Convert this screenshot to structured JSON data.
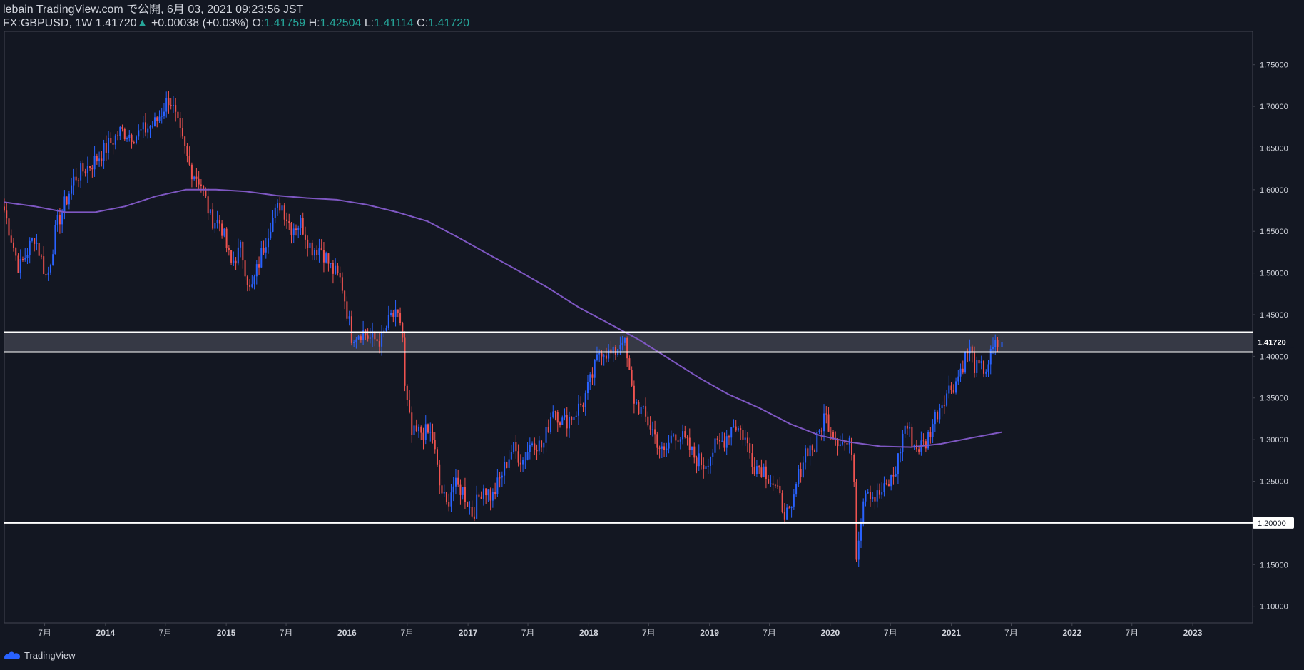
{
  "header": {
    "publisher": "lebain TradingView.com で公開, 6月 03, 2021 09:23:56 JST",
    "symbol": "FX:GBPUSD, 1W",
    "last": "1.41720",
    "change": "+0.00038 (+0.03%)",
    "o_label": "O:",
    "o_value": "1.41759",
    "h_label": "H:",
    "h_value": "1.42504",
    "l_label": "L:",
    "l_value": "1.41114",
    "c_label": "C:",
    "c_value": "1.41720"
  },
  "footer": {
    "brand": "TradingView"
  },
  "colors": {
    "background": "#131722",
    "up": "#2962ff",
    "down": "#ef5350",
    "ma": "#7e57c2",
    "grid_text": "#d1d4dc",
    "level_line": "#ffffff",
    "zone_fill": "#434651"
  },
  "chart_data": {
    "type": "candlestick",
    "symbol": "FX:GBPUSD",
    "interval": "1W",
    "ylim": [
      1.08,
      1.79
    ],
    "xlim": [
      "2013-03-01",
      "2023-07-01"
    ],
    "x_ticks": [
      {
        "date": "2013-07-01",
        "label": "7月"
      },
      {
        "date": "2014-01-01",
        "label": "2014"
      },
      {
        "date": "2014-07-01",
        "label": "7月"
      },
      {
        "date": "2015-01-01",
        "label": "2015"
      },
      {
        "date": "2015-07-01",
        "label": "7月"
      },
      {
        "date": "2016-01-01",
        "label": "2016"
      },
      {
        "date": "2016-07-01",
        "label": "7月"
      },
      {
        "date": "2017-01-01",
        "label": "2017"
      },
      {
        "date": "2017-07-01",
        "label": "7月"
      },
      {
        "date": "2018-01-01",
        "label": "2018"
      },
      {
        "date": "2018-07-01",
        "label": "7月"
      },
      {
        "date": "2019-01-01",
        "label": "2019"
      },
      {
        "date": "2019-07-01",
        "label": "7月"
      },
      {
        "date": "2020-01-01",
        "label": "2020"
      },
      {
        "date": "2020-07-01",
        "label": "7月"
      },
      {
        "date": "2021-01-01",
        "label": "2021"
      },
      {
        "date": "2021-07-01",
        "label": "7月"
      },
      {
        "date": "2022-01-01",
        "label": "2022"
      },
      {
        "date": "2022-07-01",
        "label": "7月"
      },
      {
        "date": "2023-01-01",
        "label": "2023"
      }
    ],
    "y_ticks": [
      "1.10000",
      "1.15000",
      "1.20000",
      "1.25000",
      "1.30000",
      "1.35000",
      "1.40000",
      "1.45000",
      "1.50000",
      "1.55000",
      "1.60000",
      "1.65000",
      "1.70000",
      "1.75000"
    ],
    "price_label": "1.41720",
    "price_label_value": 1.4172,
    "support_label": "1.20000",
    "support_value": 1.2,
    "zone": [
      1.405,
      1.429
    ],
    "close_anchors": [
      [
        "2013-03-01",
        1.575
      ],
      [
        "2013-04-15",
        1.505
      ],
      [
        "2013-06-01",
        1.545
      ],
      [
        "2013-07-08",
        1.492
      ],
      [
        "2013-08-05",
        1.555
      ],
      [
        "2013-09-30",
        1.615
      ],
      [
        "2013-12-01",
        1.635
      ],
      [
        "2014-02-15",
        1.67
      ],
      [
        "2014-04-01",
        1.665
      ],
      [
        "2014-06-01",
        1.68
      ],
      [
        "2014-07-14",
        1.712
      ],
      [
        "2014-08-15",
        1.665
      ],
      [
        "2014-09-15",
        1.625
      ],
      [
        "2014-10-15",
        1.61
      ],
      [
        "2014-11-15",
        1.565
      ],
      [
        "2014-12-15",
        1.56
      ],
      [
        "2015-01-15",
        1.51
      ],
      [
        "2015-02-15",
        1.53
      ],
      [
        "2015-03-15",
        1.475
      ],
      [
        "2015-04-15",
        1.52
      ],
      [
        "2015-05-15",
        1.56
      ],
      [
        "2015-06-15",
        1.585
      ],
      [
        "2015-07-15",
        1.555
      ],
      [
        "2015-08-15",
        1.56
      ],
      [
        "2015-09-15",
        1.53
      ],
      [
        "2015-10-15",
        1.53
      ],
      [
        "2015-11-15",
        1.505
      ],
      [
        "2015-12-15",
        1.49
      ],
      [
        "2016-01-15",
        1.425
      ],
      [
        "2016-02-15",
        1.43
      ],
      [
        "2016-03-15",
        1.42
      ],
      [
        "2016-04-15",
        1.42
      ],
      [
        "2016-05-15",
        1.45
      ],
      [
        "2016-06-15",
        1.44
      ],
      [
        "2016-06-24",
        1.36
      ],
      [
        "2016-07-15",
        1.305
      ],
      [
        "2016-08-15",
        1.31
      ],
      [
        "2016-09-15",
        1.305
      ],
      [
        "2016-10-07",
        1.245
      ],
      [
        "2016-10-28",
        1.22
      ],
      [
        "2016-11-15",
        1.245
      ],
      [
        "2016-12-15",
        1.24
      ],
      [
        "2017-01-15",
        1.21
      ],
      [
        "2017-02-15",
        1.245
      ],
      [
        "2017-03-15",
        1.23
      ],
      [
        "2017-04-15",
        1.26
      ],
      [
        "2017-05-15",
        1.29
      ],
      [
        "2017-06-15",
        1.275
      ],
      [
        "2017-07-15",
        1.3
      ],
      [
        "2017-08-15",
        1.29
      ],
      [
        "2017-09-15",
        1.34
      ],
      [
        "2017-10-15",
        1.32
      ],
      [
        "2017-11-15",
        1.33
      ],
      [
        "2017-12-15",
        1.345
      ],
      [
        "2018-01-15",
        1.38
      ],
      [
        "2018-02-05",
        1.41
      ],
      [
        "2018-03-15",
        1.4
      ],
      [
        "2018-04-15",
        1.425
      ],
      [
        "2018-05-15",
        1.35
      ],
      [
        "2018-06-15",
        1.33
      ],
      [
        "2018-07-15",
        1.31
      ],
      [
        "2018-08-15",
        1.28
      ],
      [
        "2018-09-15",
        1.31
      ],
      [
        "2018-10-15",
        1.3
      ],
      [
        "2018-11-15",
        1.28
      ],
      [
        "2018-12-15",
        1.27
      ],
      [
        "2019-01-15",
        1.29
      ],
      [
        "2019-02-15",
        1.3
      ],
      [
        "2019-03-15",
        1.32
      ],
      [
        "2019-04-15",
        1.305
      ],
      [
        "2019-05-15",
        1.27
      ],
      [
        "2019-06-15",
        1.265
      ],
      [
        "2019-07-15",
        1.245
      ],
      [
        "2019-08-15",
        1.215
      ],
      [
        "2019-09-03",
        1.205
      ],
      [
        "2019-09-20",
        1.245
      ],
      [
        "2019-10-20",
        1.29
      ],
      [
        "2019-11-15",
        1.29
      ],
      [
        "2019-12-15",
        1.33
      ],
      [
        "2020-01-15",
        1.305
      ],
      [
        "2020-02-15",
        1.295
      ],
      [
        "2020-03-10",
        1.29
      ],
      [
        "2020-03-20",
        1.165
      ],
      [
        "2020-04-15",
        1.245
      ],
      [
        "2020-05-15",
        1.23
      ],
      [
        "2020-06-15",
        1.24
      ],
      [
        "2020-07-15",
        1.26
      ],
      [
        "2020-08-15",
        1.32
      ],
      [
        "2020-09-15",
        1.29
      ],
      [
        "2020-10-15",
        1.295
      ],
      [
        "2020-11-15",
        1.33
      ],
      [
        "2020-12-15",
        1.355
      ],
      [
        "2021-01-15",
        1.37
      ],
      [
        "2021-02-24",
        1.41
      ],
      [
        "2021-03-15",
        1.385
      ],
      [
        "2021-04-15",
        1.385
      ],
      [
        "2021-05-10",
        1.41
      ],
      [
        "2021-06-03",
        1.4172
      ]
    ],
    "series": [
      {
        "name": "",
        "color": "#7e57c2",
        "points": [
          [
            "2013-03-01",
            1.585
          ],
          [
            "2013-06-01",
            1.58
          ],
          [
            "2013-09-01",
            1.573
          ],
          [
            "2013-12-01",
            1.573
          ],
          [
            "2014-03-01",
            1.58
          ],
          [
            "2014-06-01",
            1.592
          ],
          [
            "2014-09-01",
            1.6
          ],
          [
            "2014-12-01",
            1.6
          ],
          [
            "2015-03-01",
            1.598
          ],
          [
            "2015-06-01",
            1.593
          ],
          [
            "2015-09-01",
            1.59
          ],
          [
            "2015-12-01",
            1.588
          ],
          [
            "2016-03-01",
            1.582
          ],
          [
            "2016-06-01",
            1.573
          ],
          [
            "2016-09-01",
            1.562
          ],
          [
            "2016-12-01",
            1.543
          ],
          [
            "2017-03-01",
            1.523
          ],
          [
            "2017-06-01",
            1.503
          ],
          [
            "2017-09-01",
            1.482
          ],
          [
            "2017-12-01",
            1.459
          ],
          [
            "2018-03-01",
            1.44
          ],
          [
            "2018-06-01",
            1.42
          ],
          [
            "2018-09-01",
            1.397
          ],
          [
            "2018-12-01",
            1.374
          ],
          [
            "2019-03-01",
            1.354
          ],
          [
            "2019-06-01",
            1.338
          ],
          [
            "2019-09-01",
            1.319
          ],
          [
            "2019-12-01",
            1.305
          ],
          [
            "2020-03-01",
            1.297
          ],
          [
            "2020-06-01",
            1.292
          ],
          [
            "2020-09-01",
            1.291
          ],
          [
            "2020-12-01",
            1.295
          ],
          [
            "2021-03-01",
            1.302
          ],
          [
            "2021-06-03",
            1.309
          ]
        ]
      }
    ]
  }
}
